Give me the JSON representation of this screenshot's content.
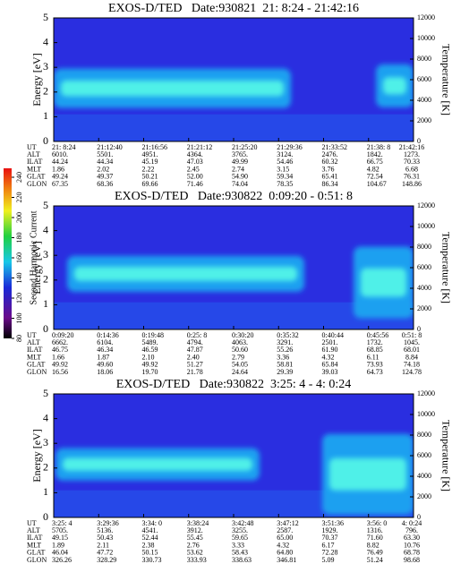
{
  "chart_data": [
    {
      "type": "spectrogram",
      "title": "EXOS-D/TED   Date:930821  21: 8:24 - 21:42:16",
      "y_label": "Energy [eV]",
      "y2_label": "Temperature [K]",
      "ylim": [
        0,
        5
      ],
      "yticks": [
        0,
        1,
        2,
        3,
        4,
        5
      ],
      "y2lim": [
        0,
        12000
      ],
      "y2ticks": [
        0,
        2000,
        4000,
        6000,
        8000,
        10000,
        12000
      ],
      "orbit": [
        {
          "name": "UT",
          "values": [
            "21: 8:24",
            "21:12:40",
            "21:16:56",
            "21:21:12",
            "21:25:20",
            "21:29:36",
            "21:33:52",
            "21:38: 8",
            "21:42:16"
          ]
        },
        {
          "name": "ALT",
          "values": [
            "6010.",
            "5501.",
            "4951.",
            "4364.",
            "3765.",
            "3124.",
            "2476.",
            "1842.",
            "1273."
          ]
        },
        {
          "name": "ILAT",
          "values": [
            "44.24",
            "44.34",
            "45.19",
            "47.03",
            "49.99",
            "54.46",
            "60.32",
            "66.75",
            "70.33"
          ]
        },
        {
          "name": "MLT",
          "values": [
            "1.86",
            "2.02",
            "2.22",
            "2.45",
            "2.74",
            "3.15",
            "3.76",
            "4.82",
            "6.68"
          ]
        },
        {
          "name": "GLAT",
          "values": [
            "49.24",
            "49.37",
            "50.21",
            "52.00",
            "54.90",
            "59.34",
            "65.41",
            "72.54",
            "76.31"
          ]
        },
        {
          "name": "GLON",
          "values": [
            "67.35",
            "68.36",
            "69.66",
            "71.46",
            "74.04",
            "78.35",
            "86.34",
            "104.67",
            "148.86"
          ]
        }
      ]
    },
    {
      "type": "spectrogram",
      "title": "EXOS-D/TED   Date:930822  0:09:20 - 0:51: 8",
      "y_label": "Energy [eV]",
      "y2_label": "Temperature [K]",
      "ylim": [
        0,
        5
      ],
      "yticks": [
        0,
        1,
        2,
        3,
        4,
        5
      ],
      "y2lim": [
        0,
        12000
      ],
      "y2ticks": [
        0,
        2000,
        4000,
        6000,
        8000,
        10000,
        12000
      ],
      "orbit": [
        {
          "name": "UT",
          "values": [
            "0:09:20",
            "0:14:36",
            "0:19:48",
            "0:25: 8",
            "0:30:20",
            "0:35:32",
            "0:40:44",
            "0:45:56",
            "0:51: 8"
          ]
        },
        {
          "name": "ALT",
          "values": [
            "6662.",
            "6104.",
            "5489.",
            "4794.",
            "4063.",
            "3291.",
            "2501.",
            "1732.",
            "1045."
          ]
        },
        {
          "name": "ILAT",
          "values": [
            "46.75",
            "46.34",
            "46.59",
            "47.87",
            "50.60",
            "55.26",
            "61.90",
            "68.85",
            "68.01"
          ]
        },
        {
          "name": "MLT",
          "values": [
            "1.66",
            "1.87",
            "2.10",
            "2.40",
            "2.79",
            "3.36",
            "4.32",
            "6.11",
            "8.84"
          ]
        },
        {
          "name": "GLAT",
          "values": [
            "49.92",
            "49.60",
            "49.92",
            "51.27",
            "54.05",
            "58.81",
            "65.84",
            "73.93",
            "74.18"
          ]
        },
        {
          "name": "GLON",
          "values": [
            "16.56",
            "18.06",
            "19.70",
            "21.78",
            "24.64",
            "29.39",
            "39.03",
            "64.73",
            "124.78"
          ]
        }
      ]
    },
    {
      "type": "spectrogram",
      "title": "EXOS-D/TED   Date:930822  3:25: 4 - 4: 0:24",
      "y_label": "Energy [eV]",
      "y2_label": "Temperature [K]",
      "ylim": [
        0,
        5
      ],
      "yticks": [
        0,
        1,
        2,
        3,
        4,
        5
      ],
      "y2lim": [
        0,
        12000
      ],
      "y2ticks": [
        0,
        2000,
        4000,
        6000,
        8000,
        10000,
        12000
      ],
      "orbit": [
        {
          "name": "UT",
          "values": [
            "3:25: 4",
            "3:29:36",
            "3:34: 0",
            "3:38:24",
            "3:42:48",
            "3:47:12",
            "3:51:36",
            "3:56: 0",
            "4: 0:24"
          ]
        },
        {
          "name": "ALT",
          "values": [
            "5705.",
            "5136.",
            "4541.",
            "3912.",
            "3255.",
            "2587.",
            "1929.",
            "1316.",
            "796."
          ]
        },
        {
          "name": "ILAT",
          "values": [
            "49.15",
            "50.43",
            "52.44",
            "55.45",
            "59.65",
            "65.00",
            "70.37",
            "71.60",
            "63.30"
          ]
        },
        {
          "name": "MLT",
          "values": [
            "1.89",
            "2.11",
            "2.38",
            "2.76",
            "3.33",
            "4.32",
            "6.17",
            "8.82",
            "10.76"
          ]
        },
        {
          "name": "GLAT",
          "values": [
            "46.04",
            "47.72",
            "50.15",
            "53.62",
            "58.43",
            "64.80",
            "72.28",
            "76.49",
            "68.78"
          ]
        },
        {
          "name": "GLON",
          "values": [
            "326.26",
            "328.29",
            "330.73",
            "333.93",
            "338.63",
            "346.81",
            "5.09",
            "51.24",
            "98.68"
          ]
        }
      ]
    }
  ],
  "colorbar": {
    "label": "Second Harmonic Current",
    "lim": [
      80,
      240
    ],
    "ticks": [
      80,
      100,
      120,
      140,
      160,
      180,
      200,
      220,
      240
    ]
  }
}
